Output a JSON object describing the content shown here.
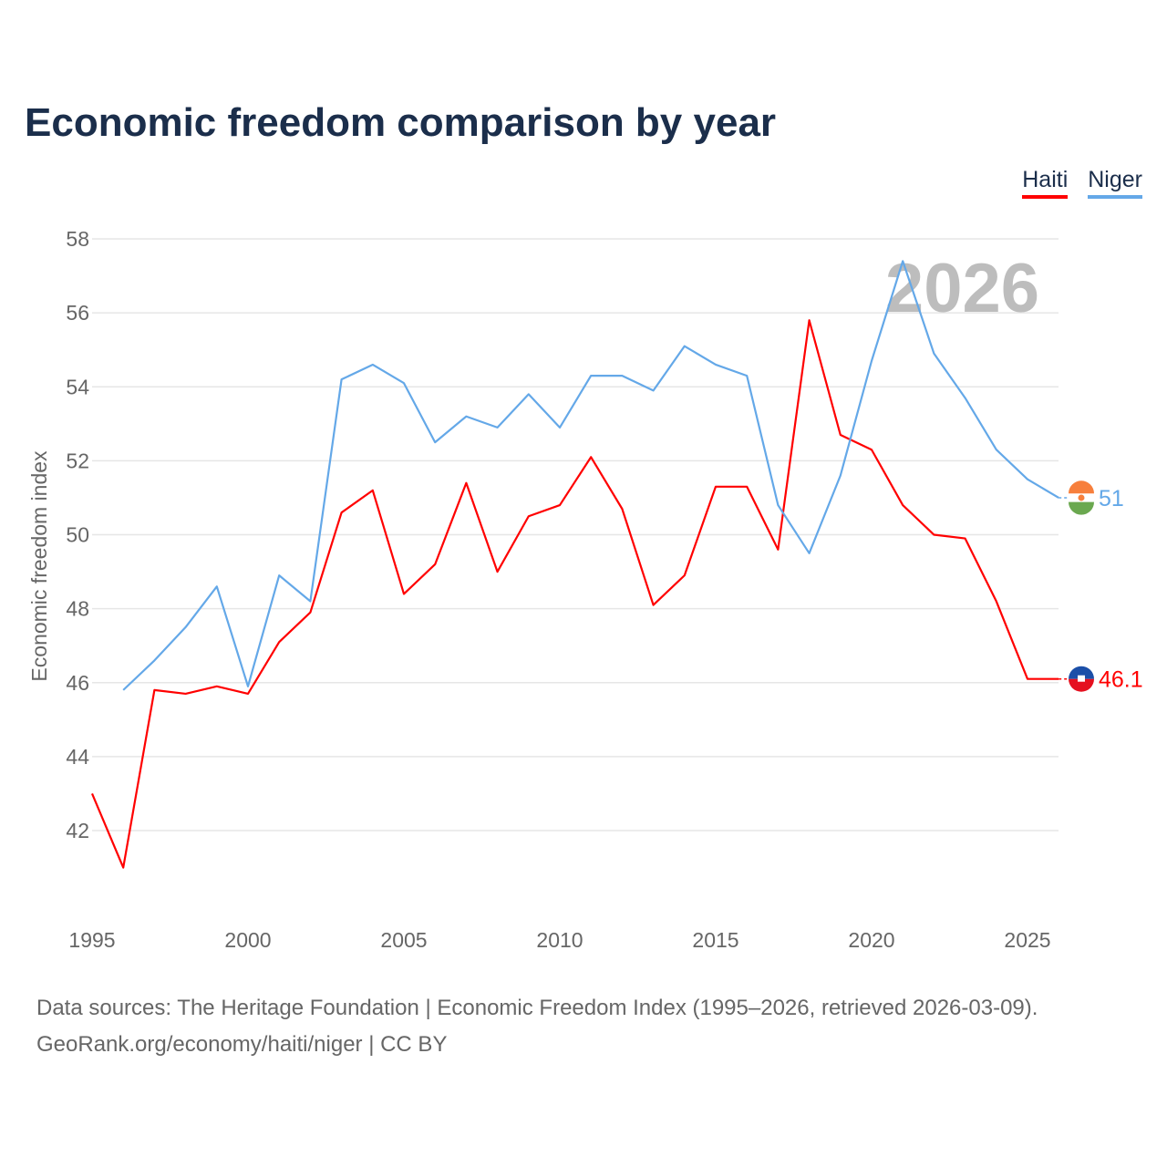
{
  "chart_data": {
    "type": "line",
    "title": "Economic freedom comparison by year",
    "xlabel": "",
    "ylabel": "Economic freedom index",
    "ylim": [
      40,
      58
    ],
    "xlim": [
      1995,
      2026
    ],
    "yticks": [
      42,
      44,
      46,
      48,
      50,
      52,
      54,
      56,
      58
    ],
    "xticks": [
      1995,
      2000,
      2005,
      2010,
      2015,
      2020,
      2025
    ],
    "grid": true,
    "legend_placement": "top-right",
    "year_watermark": "2026",
    "series": [
      {
        "name": "Haiti",
        "color": "#ff0000",
        "end_label": "46.1",
        "x": [
          1995,
          1996,
          1997,
          1998,
          1999,
          2000,
          2001,
          2002,
          2003,
          2004,
          2005,
          2006,
          2007,
          2008,
          2009,
          2010,
          2011,
          2012,
          2013,
          2014,
          2015,
          2016,
          2017,
          2018,
          2019,
          2020,
          2021,
          2022,
          2023,
          2024,
          2025,
          2026
        ],
        "values": [
          43.0,
          41.0,
          45.8,
          45.7,
          45.9,
          45.7,
          47.1,
          47.9,
          50.6,
          51.2,
          48.4,
          49.2,
          51.4,
          49.0,
          50.5,
          50.8,
          52.1,
          50.7,
          48.1,
          48.9,
          51.3,
          51.3,
          49.6,
          55.8,
          52.7,
          52.3,
          50.8,
          50.0,
          49.9,
          48.2,
          46.1,
          46.1
        ]
      },
      {
        "name": "Niger",
        "color": "#64a8e8",
        "end_label": "51",
        "x": [
          1996,
          1997,
          1998,
          1999,
          2000,
          2001,
          2002,
          2003,
          2004,
          2005,
          2006,
          2007,
          2008,
          2009,
          2010,
          2011,
          2012,
          2013,
          2014,
          2015,
          2016,
          2017,
          2018,
          2019,
          2020,
          2021,
          2022,
          2023,
          2024,
          2025,
          2026
        ],
        "values": [
          45.8,
          46.6,
          47.5,
          48.6,
          45.9,
          48.9,
          48.2,
          54.2,
          54.6,
          54.1,
          52.5,
          53.2,
          52.9,
          53.8,
          52.9,
          54.3,
          54.3,
          53.9,
          55.1,
          54.6,
          54.3,
          50.8,
          49.5,
          51.6,
          54.7,
          57.4,
          54.9,
          53.7,
          52.3,
          51.5,
          51.0
        ]
      }
    ]
  },
  "source": {
    "line1": "Data sources: The Heritage Foundation | Economic Freedom Index (1995–2026, retrieved 2026-03-09).",
    "line2": "GeoRank.org/economy/haiti/niger | CC BY"
  }
}
